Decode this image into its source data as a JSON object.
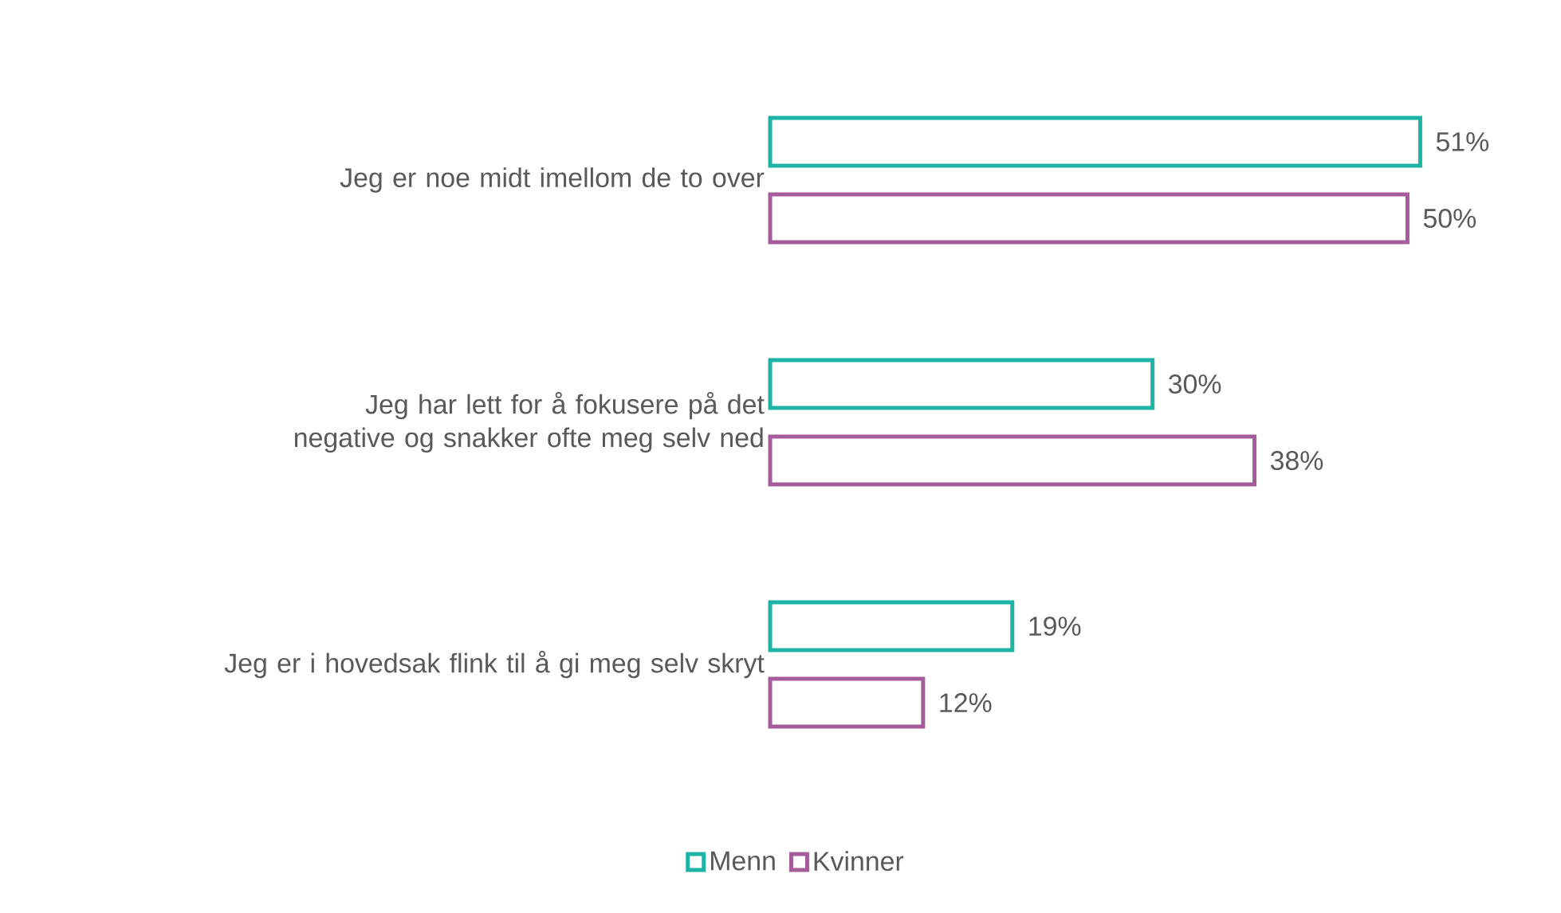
{
  "chart_data": {
    "type": "bar",
    "orientation": "horizontal",
    "categories": [
      "Jeg er noe midt imellom de to over",
      "Jeg har lett for å fokusere på det negative og snakker ofte meg selv ned",
      "Jeg er i hovedsak flink til å gi meg selv skryt"
    ],
    "series": [
      {
        "name": "Menn",
        "color": "#1fb3a5",
        "values": [
          51,
          30,
          19
        ],
        "value_labels": [
          "51%",
          "30%",
          "19%"
        ]
      },
      {
        "name": "Kvinner",
        "color": "#a55c9b",
        "values": [
          50,
          38,
          12
        ],
        "value_labels": [
          "50%",
          "38%",
          "12%"
        ]
      }
    ],
    "legend": "bottom"
  }
}
